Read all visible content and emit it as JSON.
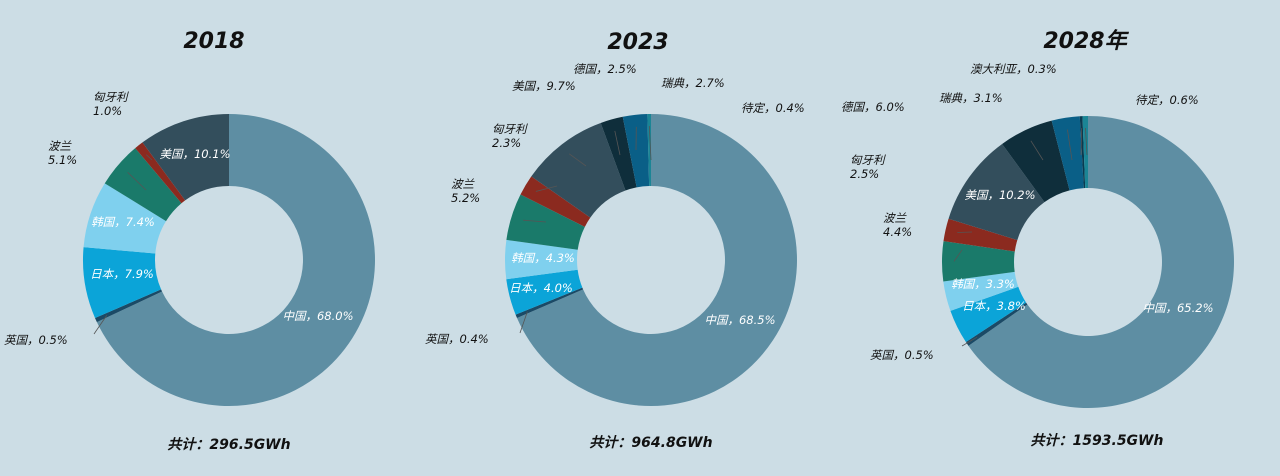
{
  "colors": {
    "中国": "#5e8ea3",
    "美国": "#334e5c",
    "匈牙利": "#8b2a1f",
    "波兰": "#1a7a6a",
    "韩国": "#7fd0ee",
    "日本": "#0ba4d8",
    "英国": "#1b4a66",
    "德国": "#0f2e3b",
    "瑞典": "#0a5f87",
    "澳大利亚": "#0a3a50",
    "待定": "#1b8595"
  },
  "chart_data": [
    {
      "type": "pie",
      "title": "2018",
      "total_text": "共计：296.5GWh",
      "slices": [
        {
          "name": "中国",
          "value": 68.0,
          "label": "中国，68.0%"
        },
        {
          "name": "英国",
          "value": 0.5,
          "label": "英国，0.5%"
        },
        {
          "name": "日本",
          "value": 7.9,
          "label": "日本，7.9%"
        },
        {
          "name": "韩国",
          "value": 7.4,
          "label": "韩国，7.4%"
        },
        {
          "name": "波兰",
          "value": 5.1,
          "label": "波兰\n5.1%"
        },
        {
          "name": "匈牙利",
          "value": 1.0,
          "label": "匈牙利\n1.0%"
        },
        {
          "name": "美国",
          "value": 10.1,
          "label": "美国，10.1%"
        }
      ]
    },
    {
      "type": "pie",
      "title": "2023",
      "total_text": "共计：964.8GWh",
      "slices": [
        {
          "name": "中国",
          "value": 68.5,
          "label": "中国，68.5%"
        },
        {
          "name": "英国",
          "value": 0.4,
          "label": "英国，0.4%"
        },
        {
          "name": "日本",
          "value": 4.0,
          "label": "日本，4.0%"
        },
        {
          "name": "韩国",
          "value": 4.3,
          "label": "韩国，4.3%"
        },
        {
          "name": "波兰",
          "value": 5.2,
          "label": "波兰\n5.2%"
        },
        {
          "name": "匈牙利",
          "value": 2.3,
          "label": "匈牙利\n2.3%"
        },
        {
          "name": "美国",
          "value": 9.7,
          "label": "美国，9.7%"
        },
        {
          "name": "德国",
          "value": 2.5,
          "label": "德国，2.5%"
        },
        {
          "name": "瑞典",
          "value": 2.7,
          "label": "瑞典，2.7%"
        },
        {
          "name": "待定",
          "value": 0.4,
          "label": "待定，0.4%"
        }
      ]
    },
    {
      "type": "pie",
      "title": "2028年",
      "total_text": "共计：1593.5GWh",
      "slices": [
        {
          "name": "中国",
          "value": 65.2,
          "label": "中国，65.2%"
        },
        {
          "name": "英国",
          "value": 0.5,
          "label": "英国，0.5%"
        },
        {
          "name": "日本",
          "value": 3.8,
          "label": "日本，3.8%"
        },
        {
          "name": "韩国",
          "value": 3.3,
          "label": "韩国，3.3%"
        },
        {
          "name": "波兰",
          "value": 4.4,
          "label": "波兰\n4.4%"
        },
        {
          "name": "匈牙利",
          "value": 2.5,
          "label": "匈牙利\n2.5%"
        },
        {
          "name": "美国",
          "value": 10.2,
          "label": "美国，10.2%"
        },
        {
          "name": "德国",
          "value": 6.0,
          "label": "德国，6.0%"
        },
        {
          "name": "瑞典",
          "value": 3.1,
          "label": "瑞典，3.1%"
        },
        {
          "name": "澳大利亚",
          "value": 0.3,
          "label": "澳大利亚，0.3%"
        },
        {
          "name": "待定",
          "value": 0.6,
          "label": "待定，0.6%"
        }
      ]
    }
  ]
}
